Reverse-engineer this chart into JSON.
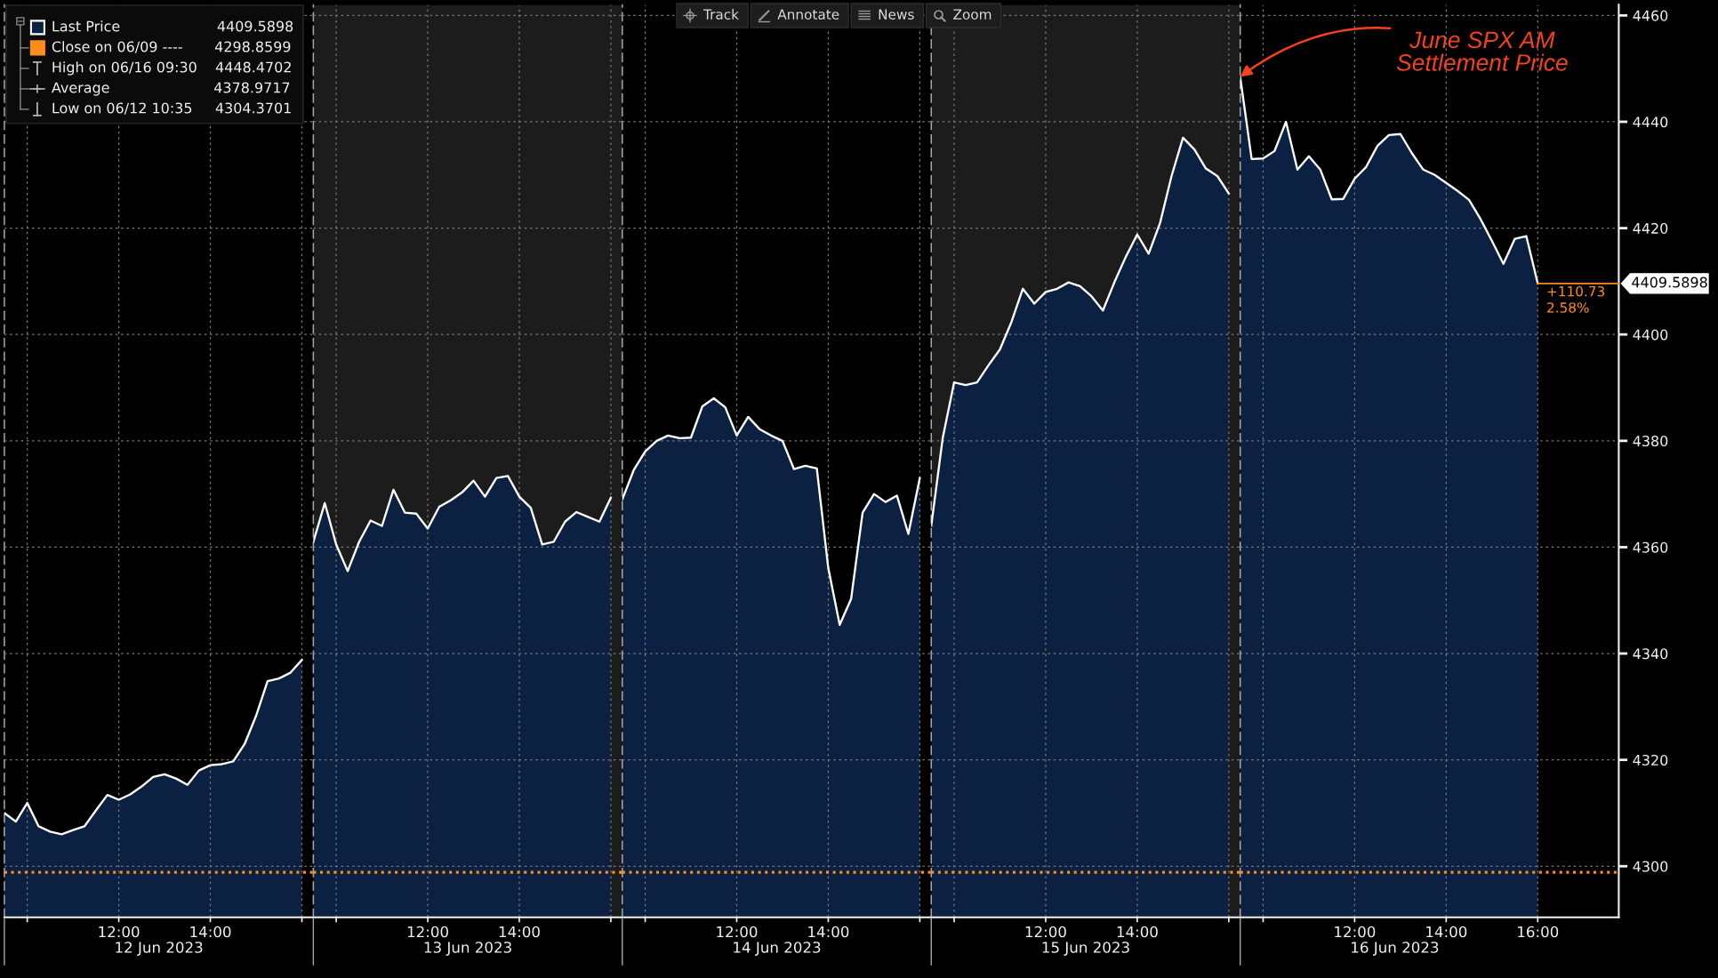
{
  "chart_data": [
    {
      "type": "area",
      "xlabel": "12 Jun 2023",
      "x": [
        9.5,
        9.75,
        10,
        10.25,
        10.5,
        10.75,
        11,
        11.25,
        11.5,
        11.75,
        12,
        12.25,
        12.5,
        12.75,
        13,
        13.25,
        13.5,
        13.75,
        14,
        14.25,
        14.5,
        14.75,
        15,
        15.25,
        15.5,
        15.75,
        16
      ],
      "series": [
        {
          "name": "Last Price",
          "color": "#0c2142",
          "values": [
            4310.0,
            4308.4,
            4311.9,
            4307.5,
            4306.5,
            4306.0,
            4306.8,
            4307.5,
            4310.5,
            4313.4,
            4312.5,
            4313.5,
            4315.0,
            4316.8,
            4317.3,
            4316.5,
            4315.3,
            4318.0,
            4319.0,
            4319.2,
            4319.7,
            4323.0,
            4328.3,
            4334.8,
            4335.3,
            4336.4,
            4338.8
          ]
        }
      ],
      "xlim": [
        9.5,
        16.25
      ],
      "xticks": [
        {
          "value": 10,
          "label": null
        },
        {
          "value": 12,
          "label": "12:00"
        },
        {
          "value": 14,
          "label": "14:00"
        },
        {
          "value": 16,
          "label": null
        }
      ],
      "ylim": [
        4290.4,
        4462
      ],
      "yticks": [
        4300,
        4320,
        4340,
        4360,
        4380,
        4400,
        4420,
        4440,
        4460
      ],
      "tick_labels": "x",
      "grid": true,
      "legend": "top left",
      "ref_lines": [
        {
          "axis": "y",
          "value": 4298.8599,
          "label": "Close on 06/09 ---- 4298.8599",
          "color": "#ff8c1a",
          "line_style": "dotted"
        }
      ],
      "annotations": [
        "High on 06/16 09:30 4448.4702",
        "Average 4378.9717",
        "Low on 06/12 10:35 4304.3701"
      ]
    },
    {
      "type": "area",
      "xlabel": "13 Jun 2023",
      "x": [
        9.5,
        9.75,
        10,
        10.25,
        10.5,
        10.75,
        11,
        11.25,
        11.5,
        11.75,
        12,
        12.25,
        12.5,
        12.75,
        13,
        13.25,
        13.5,
        13.75,
        14,
        14.25,
        14.5,
        14.75,
        15,
        15.25,
        15.5,
        15.75,
        16
      ],
      "series": [
        {
          "color": "#0c2142",
          "values": [
            4361.0,
            4368.3,
            4360.5,
            4355.5,
            4361.0,
            4365.0,
            4364.0,
            4370.8,
            4366.5,
            4366.3,
            4363.5,
            4367.6,
            4368.8,
            4370.3,
            4372.5,
            4369.5,
            4373.0,
            4373.4,
            4369.5,
            4367.4,
            4360.5,
            4361.0,
            4364.8,
            4366.6,
            4365.7,
            4364.8,
            4369.3
          ]
        }
      ],
      "xlim": [
        9.5,
        16.25
      ],
      "xticks": [
        {
          "value": 10,
          "label": null
        },
        {
          "value": 12,
          "label": "12:00"
        },
        {
          "value": 14,
          "label": "14:00"
        },
        {
          "value": 16,
          "label": null
        }
      ],
      "ylim": [
        4290.4,
        4462
      ],
      "yticks": [
        4300,
        4320,
        4340,
        4360,
        4380,
        4400,
        4420,
        4440,
        4460
      ],
      "tick_labels": "x",
      "grid": true,
      "bands": [
        {
          "axis": "x",
          "from": 9.5,
          "to": 16.25,
          "color": "#1c1c1c"
        }
      ],
      "ref_lines": [
        {
          "axis": "y",
          "value": 4298.8599,
          "color": "#ff8c1a",
          "line_style": "dotted"
        }
      ]
    },
    {
      "type": "area",
      "xlabel": "14 Jun 2023",
      "x": [
        9.5,
        9.75,
        10,
        10.25,
        10.5,
        10.75,
        11,
        11.25,
        11.5,
        11.75,
        12,
        12.25,
        12.5,
        12.75,
        13,
        13.25,
        13.5,
        13.75,
        14,
        14.25,
        14.5,
        14.75,
        15,
        15.25,
        15.5,
        15.75,
        16
      ],
      "series": [
        {
          "color": "#0c2142",
          "values": [
            4369.0,
            4374.5,
            4378.0,
            4380.0,
            4381.0,
            4380.5,
            4380.6,
            4386.5,
            4388.0,
            4386.3,
            4381.0,
            4384.5,
            4382.2,
            4381.0,
            4380.0,
            4374.7,
            4375.3,
            4374.8,
            4356.1,
            4345.4,
            4350.3,
            4366.5,
            4370.0,
            4368.5,
            4369.7,
            4362.5,
            4373.0
          ]
        }
      ],
      "xlim": [
        9.5,
        16.25
      ],
      "xticks": [
        {
          "value": 10,
          "label": null
        },
        {
          "value": 12,
          "label": "12:00"
        },
        {
          "value": 14,
          "label": "14:00"
        },
        {
          "value": 16,
          "label": null
        }
      ],
      "ylim": [
        4290.4,
        4462
      ],
      "yticks": [
        4300,
        4320,
        4340,
        4360,
        4380,
        4400,
        4420,
        4440,
        4460
      ],
      "tick_labels": "x",
      "grid": true,
      "ref_lines": [
        {
          "axis": "y",
          "value": 4298.8599,
          "color": "#ff8c1a",
          "line_style": "dotted"
        }
      ],
      "annotations": [
        "Track",
        "Annotate",
        "News",
        "Zoom"
      ]
    },
    {
      "type": "area",
      "xlabel": "15 Jun 2023",
      "x": [
        9.5,
        9.75,
        10,
        10.25,
        10.5,
        10.75,
        11,
        11.25,
        11.5,
        11.75,
        12,
        12.25,
        12.5,
        12.75,
        13,
        13.25,
        13.5,
        13.75,
        14,
        14.25,
        14.5,
        14.75,
        15,
        15.25,
        15.5,
        15.75,
        16
      ],
      "series": [
        {
          "color": "#0c2142",
          "values": [
            4364.0,
            4380.5,
            4391.0,
            4390.5,
            4391.0,
            4394.2,
            4397.2,
            4402.3,
            4408.6,
            4405.8,
            4408.0,
            4408.6,
            4409.8,
            4409.1,
            4407.2,
            4404.5,
            4409.8,
            4414.6,
            4418.8,
            4415.2,
            4421.0,
            4429.8,
            4437.0,
            4434.8,
            4431.2,
            4429.8,
            4426.5
          ]
        }
      ],
      "xlim": [
        9.5,
        16.25
      ],
      "xticks": [
        {
          "value": 10,
          "label": null
        },
        {
          "value": 12,
          "label": "12:00"
        },
        {
          "value": 14,
          "label": "14:00"
        },
        {
          "value": 16,
          "label": null
        }
      ],
      "ylim": [
        4290.4,
        4462
      ],
      "yticks": [
        4300,
        4320,
        4340,
        4360,
        4380,
        4400,
        4420,
        4440,
        4460
      ],
      "tick_labels": "x",
      "grid": true,
      "bands": [
        {
          "axis": "x",
          "from": 9.5,
          "to": 16.25,
          "color": "#1c1c1c"
        }
      ],
      "ref_lines": [
        {
          "axis": "y",
          "value": 4298.8599,
          "color": "#ff8c1a",
          "line_style": "dotted"
        }
      ]
    },
    {
      "type": "area",
      "xlabel": "16 Jun 2023",
      "x": [
        9.5,
        9.75,
        10,
        10.25,
        10.5,
        10.75,
        11,
        11.25,
        11.5,
        11.75,
        12,
        12.25,
        12.5,
        12.75,
        13,
        13.25,
        13.5,
        13.75,
        14,
        14.25,
        14.5,
        14.75,
        15,
        15.25,
        15.5,
        15.75,
        16
      ],
      "series": [
        {
          "color": "#0c2142",
          "values": [
            4448.4,
            4433.0,
            4433.1,
            4434.5,
            4440.0,
            4431.0,
            4433.5,
            4431.0,
            4425.4,
            4425.5,
            4429.3,
            4431.5,
            4435.5,
            4437.5,
            4437.7,
            4434.1,
            4431.0,
            4430.0,
            4428.5,
            4427.0,
            4425.3,
            4421.7,
            4417.6,
            4413.3,
            4418.0,
            4418.5,
            4409.5898
          ],
          "value_labels": [
            null,
            null,
            null,
            null,
            null,
            null,
            null,
            null,
            null,
            null,
            null,
            null,
            null,
            null,
            null,
            null,
            null,
            null,
            null,
            null,
            null,
            null,
            null,
            null,
            null,
            null,
            "4409.5898"
          ]
        }
      ],
      "xlim": [
        9.5,
        17.77
      ],
      "xticks": [
        {
          "value": 10,
          "label": null
        },
        {
          "value": 12,
          "label": "12:00"
        },
        {
          "value": 14,
          "label": "14:00"
        },
        {
          "value": 16,
          "label": "16:00"
        }
      ],
      "ylim": [
        4290.4,
        4462
      ],
      "yticks": [
        4300,
        4320,
        4340,
        4360,
        4380,
        4400,
        4420,
        4440,
        4460
      ],
      "grid": true,
      "ref_lines": [
        {
          "axis": "y",
          "value": 4298.8599,
          "color": "#ff8c1a",
          "line_style": "dotted"
        }
      ],
      "annotations": [
        {
          "text": "June SPX AM\nSettlement Price",
          "x": 9.5,
          "y": 4448.4702
        },
        {
          "text": "+110.73\n2.58%",
          "x": 16,
          "y": 4409.5898
        }
      ]
    }
  ]
}
